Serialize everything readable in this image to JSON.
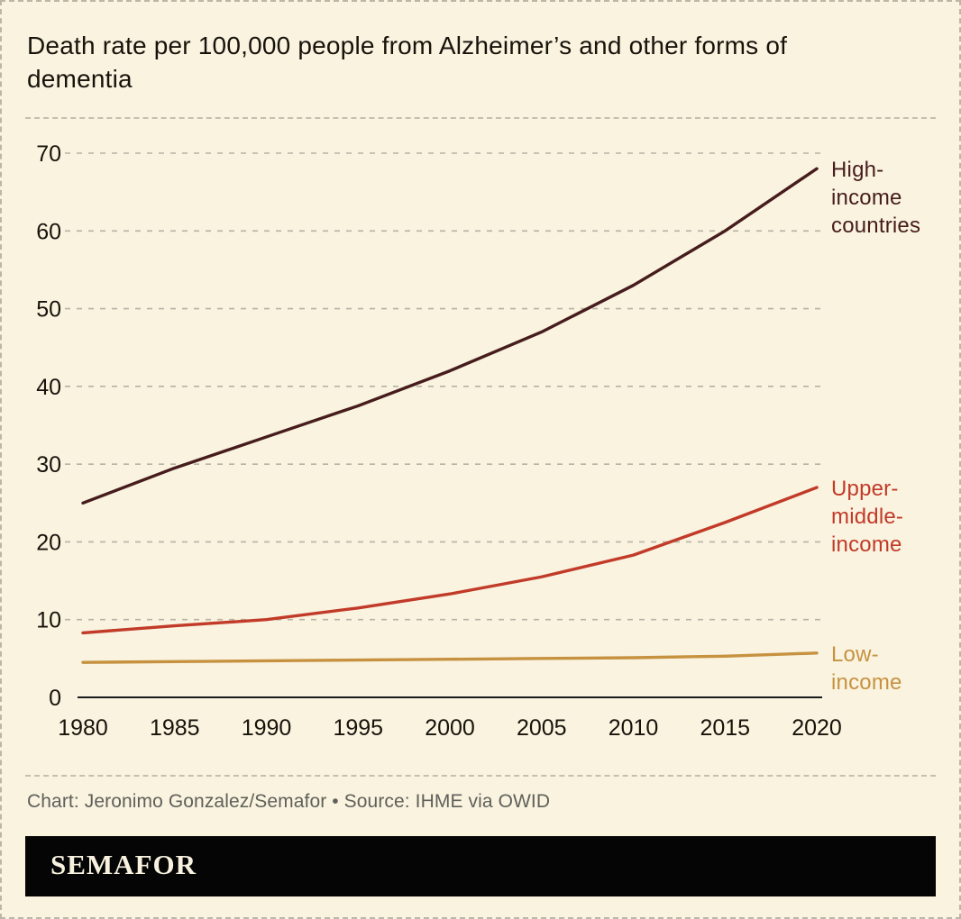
{
  "page": {
    "title": "Death rate per 100,000 people from Alzheimer’s and other forms of dementia",
    "credit": "Chart: Jeronimo Gonzalez/Semafor • Source: IHME via OWID",
    "brand": "SEMAFOR",
    "colors": {
      "background": "#f9f3e0",
      "border": "#bdb6a4",
      "grid": "#b7b2a4",
      "axis": "#1a1a1a",
      "tick_text": "#17130b",
      "credit_text": "#60605a",
      "brand_bg": "#050505",
      "brand_text": "#f7f1de"
    }
  },
  "chart_data": {
    "type": "line",
    "title": "Death rate per 100,000 people from Alzheimer’s and other forms of dementia",
    "xlabel": "",
    "ylabel": "Death rate per 100,000 people",
    "x": [
      1980,
      1985,
      1990,
      1995,
      2000,
      2005,
      2010,
      2015,
      2020
    ],
    "xlim": [
      1980,
      2020
    ],
    "ylim": [
      0,
      70
    ],
    "xticks": [
      1980,
      1985,
      1990,
      1995,
      2000,
      2005,
      2010,
      2015,
      2020
    ],
    "yticks": [
      0,
      10,
      20,
      30,
      40,
      50,
      60,
      70
    ],
    "grid": "horizontal-dashed",
    "legend_position": "right-of-line-ends",
    "series": [
      {
        "name": "High-income countries",
        "label_lines": [
          "High-",
          "income",
          "countries"
        ],
        "color": "#461c1c",
        "values": [
          25,
          29.5,
          33.5,
          37.5,
          42,
          47,
          53,
          60,
          68
        ]
      },
      {
        "name": "Upper-middle-income",
        "label_lines": [
          "Upper-",
          "middle-",
          "income"
        ],
        "color": "#c23a28",
        "values": [
          8.3,
          9.2,
          10,
          11.5,
          13.3,
          15.5,
          18.3,
          22.5,
          27
        ]
      },
      {
        "name": "Low-income",
        "label_lines": [
          "Low-",
          "income"
        ],
        "color": "#c79240",
        "values": [
          4.5,
          4.6,
          4.7,
          4.8,
          4.9,
          5,
          5.1,
          5.3,
          5.7
        ]
      }
    ]
  }
}
